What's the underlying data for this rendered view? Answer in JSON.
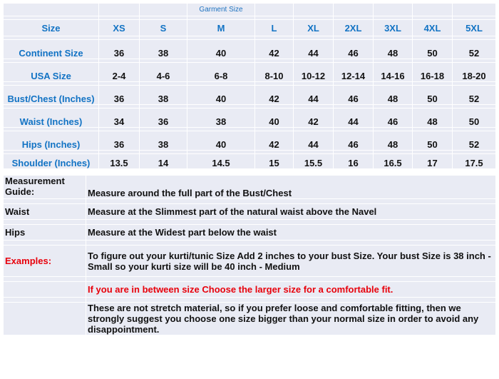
{
  "caption": "Garment Size",
  "headers": [
    "Size",
    "XS",
    "S",
    "M",
    "L",
    "XL",
    "2XL",
    "3XL",
    "4XL",
    "5XL"
  ],
  "rows": [
    {
      "label": "Continent Size",
      "values": [
        "36",
        "38",
        "40",
        "42",
        "44",
        "46",
        "48",
        "50",
        "52"
      ]
    },
    {
      "label": "USA Size",
      "values": [
        "2-4",
        "4-6",
        "6-8",
        "8-10",
        "10-12",
        "12-14",
        "14-16",
        "16-18",
        "18-20"
      ]
    },
    {
      "label": "Bust/Chest (Inches)",
      "values": [
        "36",
        "38",
        "40",
        "42",
        "44",
        "46",
        "48",
        "50",
        "52"
      ]
    },
    {
      "label": "Waist (Inches)",
      "values": [
        "34",
        "36",
        "38",
        "40",
        "42",
        "44",
        "46",
        "48",
        "50"
      ]
    },
    {
      "label": "Hips (Inches)",
      "values": [
        "36",
        "38",
        "40",
        "42",
        "44",
        "46",
        "48",
        "50",
        "52"
      ]
    },
    {
      "label": "Shoulder (Inches)",
      "values": [
        "13.5",
        "14",
        "14.5",
        "15",
        "15.5",
        "16",
        "16.5",
        "17",
        "17.5"
      ]
    }
  ],
  "guide": [
    {
      "label": "Measurement Guide:",
      "text": "Measure around the full part of the Bust/Chest"
    },
    {
      "label": "Waist",
      "text": "Measure at the Slimmest part of the natural waist above the Navel"
    },
    {
      "label": "Hips",
      "text": "Measure at the Widest part below the waist"
    },
    {
      "label": "Examples:",
      "text": "To figure out your kurti/tunic Size Add 2 inches to your bust Size. Your bust Size is 38 inch - Small so your kurti size will  be 40 inch - Medium"
    },
    {
      "label": "",
      "text": "If you are in between size Choose the larger size for a comfortable fit."
    },
    {
      "label": "",
      "text": "These are not stretch material, so if you prefer loose and comfortable fitting, then we strongly suggest you choose one size bigger than your normal size in order to avoid any disappointment."
    }
  ],
  "colors": {
    "label_blue": "#1273c4",
    "red": "#e8000b",
    "cell_bg": "#e9ebf4"
  }
}
